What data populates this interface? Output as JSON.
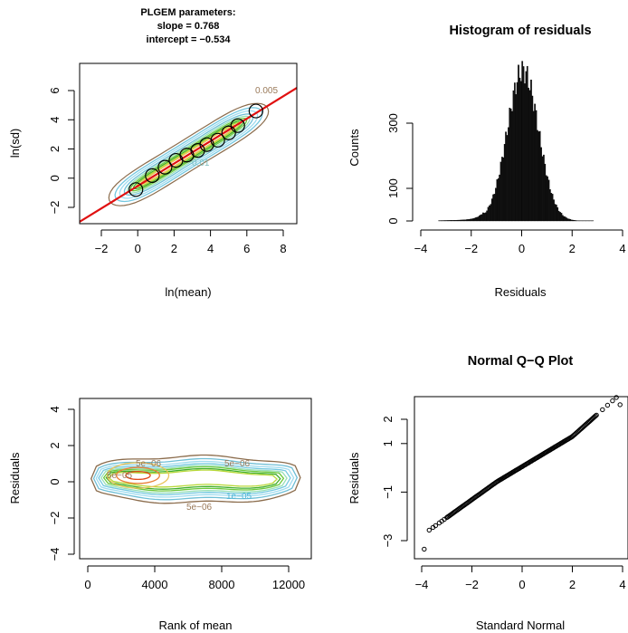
{
  "chart_data": [
    {
      "type": "scatter",
      "title_lines": [
        "PLGEM parameters:",
        "slope = 0.768",
        "intercept = −0.534"
      ],
      "xlabel": "ln(mean)",
      "ylabel": "ln(sd)",
      "xlim": [
        -2.8,
        8.6
      ],
      "ylim": [
        -2.5,
        6.2
      ],
      "xticks": [
        "−2",
        "0",
        "2",
        "4",
        "6",
        "8"
      ],
      "yticks": [
        "−2",
        "0",
        "2",
        "4",
        "6"
      ],
      "fit_line": {
        "slope": 0.768,
        "intercept": -0.534
      },
      "bin_points": {
        "x": [
          -0.1,
          0.8,
          1.5,
          2.1,
          2.7,
          3.3,
          3.8,
          4.4,
          5.0,
          5.5,
          6.5
        ],
        "y": [
          -0.78,
          0.18,
          0.75,
          1.22,
          1.58,
          1.9,
          2.3,
          2.6,
          3.1,
          3.6,
          4.6
        ]
      },
      "contour_labels": [
        "0.005",
        "0.01"
      ]
    },
    {
      "type": "bar",
      "title": "Histogram of residuals",
      "xlabel": "Residuals",
      "ylabel": "Counts",
      "xlim": [
        -4.3,
        4.3
      ],
      "ylim": [
        0,
        420
      ],
      "xticks": [
        "−4",
        "−2",
        "0",
        "2",
        "4"
      ],
      "yticks": [
        "0",
        "100",
        "300"
      ],
      "peak": 400,
      "sd": 0.62,
      "range": [
        -3.3,
        2.8
      ]
    },
    {
      "type": "scatter",
      "xlabel": "Rank of mean",
      "ylabel": "Residuals",
      "xlim": [
        -500,
        13500
      ],
      "ylim": [
        -4.5,
        4.5
      ],
      "xticks": [
        "0",
        "4000",
        "8000",
        "12000"
      ],
      "yticks": [
        "−4",
        "−2",
        "0",
        "2",
        "4"
      ],
      "contour_labels": [
        "5e−06",
        "5e−06",
        "1e−05",
        "5e−06",
        "5e−05"
      ]
    },
    {
      "type": "scatter",
      "title": "Normal Q−Q Plot",
      "xlabel": "Standard Normal",
      "ylabel": "Residuals",
      "xlim": [
        -4.2,
        4.2
      ],
      "ylim": [
        -3.8,
        2.9
      ],
      "xticks": [
        "−4",
        "−2",
        "0",
        "2",
        "4"
      ],
      "yticks": [
        "−3",
        "−1",
        "1",
        "2"
      ],
      "min_res": -3.35,
      "max_res": 2.6
    }
  ]
}
